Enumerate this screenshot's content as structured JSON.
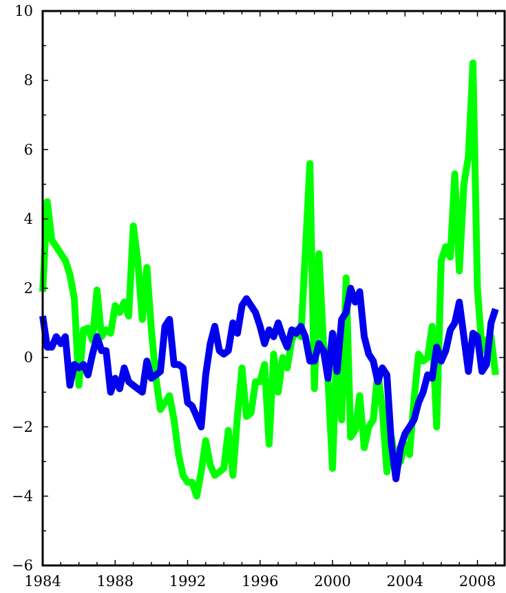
{
  "chart_data": {
    "type": "line",
    "title": "",
    "xlabel": "",
    "ylabel": "",
    "xlim": [
      1984,
      2009.5
    ],
    "ylim": [
      -6,
      10
    ],
    "x_ticks": [
      1984,
      1988,
      1992,
      1996,
      2000,
      2004,
      2008
    ],
    "x_tick_labels": [
      "1984",
      "1988",
      "1992",
      "1996",
      "2000",
      "2004",
      "2008"
    ],
    "y_ticks": [
      -6,
      -4,
      -2,
      0,
      2,
      4,
      6,
      8,
      10
    ],
    "y_tick_labels": [
      "−6",
      "−4",
      "−2",
      "0",
      "2",
      "4",
      "6",
      "8",
      "10"
    ],
    "grid": false,
    "legend": "none",
    "series": [
      {
        "color": "#00ff00",
        "points": [
          [
            1984.0,
            1.9
          ],
          [
            1984.25,
            4.5
          ],
          [
            1984.5,
            3.4
          ],
          [
            1984.75,
            3.2
          ],
          [
            1985.0,
            3.0
          ],
          [
            1985.25,
            2.8
          ],
          [
            1985.5,
            2.4
          ],
          [
            1985.75,
            1.7
          ],
          [
            1986.0,
            -0.8
          ],
          [
            1986.25,
            0.8
          ],
          [
            1986.5,
            0.85
          ],
          [
            1986.75,
            0.5
          ],
          [
            1987.0,
            1.95
          ],
          [
            1987.25,
            0.6
          ],
          [
            1987.5,
            0.8
          ],
          [
            1987.75,
            0.7
          ],
          [
            1988.0,
            1.5
          ],
          [
            1988.25,
            1.3
          ],
          [
            1988.5,
            1.6
          ],
          [
            1988.75,
            1.2
          ],
          [
            1989.0,
            3.8
          ],
          [
            1989.25,
            2.8
          ],
          [
            1989.5,
            1.1
          ],
          [
            1989.75,
            2.6
          ],
          [
            1990.0,
            0.8
          ],
          [
            1990.25,
            -0.6
          ],
          [
            1990.5,
            -1.5
          ],
          [
            1990.75,
            -1.3
          ],
          [
            1991.0,
            -1.1
          ],
          [
            1991.25,
            -1.8
          ],
          [
            1991.5,
            -2.8
          ],
          [
            1991.75,
            -3.4
          ],
          [
            1992.0,
            -3.6
          ],
          [
            1992.25,
            -3.6
          ],
          [
            1992.5,
            -4.0
          ],
          [
            1992.75,
            -3.3
          ],
          [
            1993.0,
            -2.4
          ],
          [
            1993.25,
            -3.1
          ],
          [
            1993.5,
            -3.4
          ],
          [
            1993.75,
            -3.3
          ],
          [
            1994.0,
            -3.2
          ],
          [
            1994.25,
            -2.1
          ],
          [
            1994.5,
            -3.4
          ],
          [
            1994.75,
            -1.7
          ],
          [
            1995.0,
            -0.3
          ],
          [
            1995.25,
            -1.7
          ],
          [
            1995.5,
            -1.6
          ],
          [
            1995.75,
            -0.7
          ],
          [
            1996.0,
            -0.7
          ],
          [
            1996.25,
            -0.2
          ],
          [
            1996.5,
            -2.5
          ],
          [
            1996.75,
            0.1
          ],
          [
            1997.0,
            -1.0
          ],
          [
            1997.25,
            0.0
          ],
          [
            1997.5,
            -0.3
          ],
          [
            1997.75,
            0.5
          ],
          [
            1998.0,
            0.8
          ],
          [
            1998.25,
            0.6
          ],
          [
            1998.5,
            3.0
          ],
          [
            1998.75,
            5.6
          ],
          [
            1999.0,
            -0.9
          ],
          [
            1999.25,
            3.0
          ],
          [
            1999.5,
            0.4
          ],
          [
            1999.75,
            -0.6
          ],
          [
            2000.0,
            -3.2
          ],
          [
            2000.25,
            0.6
          ],
          [
            2000.5,
            -1.8
          ],
          [
            2000.75,
            2.3
          ],
          [
            2001.0,
            -2.3
          ],
          [
            2001.25,
            -2.1
          ],
          [
            2001.5,
            -1.1
          ],
          [
            2001.75,
            -2.6
          ],
          [
            2002.0,
            -2.0
          ],
          [
            2002.25,
            -1.8
          ],
          [
            2002.5,
            -0.4
          ],
          [
            2002.75,
            -1.5
          ],
          [
            2003.0,
            -3.3
          ],
          [
            2003.25,
            -2.3
          ],
          [
            2003.5,
            -3.1
          ],
          [
            2003.75,
            -3.0
          ],
          [
            2004.0,
            -2.5
          ],
          [
            2004.25,
            -2.8
          ],
          [
            2004.5,
            -1.2
          ],
          [
            2004.75,
            0.1
          ],
          [
            2005.0,
            -0.1
          ],
          [
            2005.25,
            0.0
          ],
          [
            2005.5,
            0.9
          ],
          [
            2005.75,
            -2.0
          ],
          [
            2006.0,
            2.8
          ],
          [
            2006.25,
            3.2
          ],
          [
            2006.5,
            2.9
          ],
          [
            2006.75,
            5.3
          ],
          [
            2007.0,
            2.5
          ],
          [
            2007.25,
            5.0
          ],
          [
            2007.5,
            5.8
          ],
          [
            2007.75,
            8.5
          ],
          [
            2008.0,
            2.0
          ],
          [
            2008.25,
            0.2
          ],
          [
            2008.5,
            0.5
          ],
          [
            2008.75,
            0.6
          ],
          [
            2009.0,
            -0.5
          ]
        ]
      },
      {
        "color": "#0000ee",
        "points": [
          [
            1984.0,
            1.2
          ],
          [
            1984.25,
            0.3
          ],
          [
            1984.5,
            0.3
          ],
          [
            1984.75,
            0.6
          ],
          [
            1985.0,
            0.4
          ],
          [
            1985.25,
            0.6
          ],
          [
            1985.5,
            -0.8
          ],
          [
            1985.75,
            -0.2
          ],
          [
            1986.0,
            -0.3
          ],
          [
            1986.25,
            -0.2
          ],
          [
            1986.5,
            -0.5
          ],
          [
            1986.75,
            0.1
          ],
          [
            1987.0,
            0.6
          ],
          [
            1987.25,
            0.2
          ],
          [
            1987.5,
            0.2
          ],
          [
            1987.75,
            -1.0
          ],
          [
            1988.0,
            -0.6
          ],
          [
            1988.25,
            -0.9
          ],
          [
            1988.5,
            -0.3
          ],
          [
            1988.75,
            -0.7
          ],
          [
            1989.0,
            -0.8
          ],
          [
            1989.25,
            -0.9
          ],
          [
            1989.5,
            -1.0
          ],
          [
            1989.75,
            -0.1
          ],
          [
            1990.0,
            -0.6
          ],
          [
            1990.25,
            -0.5
          ],
          [
            1990.5,
            -0.4
          ],
          [
            1990.75,
            0.9
          ],
          [
            1991.0,
            1.1
          ],
          [
            1991.25,
            -0.2
          ],
          [
            1991.5,
            -0.2
          ],
          [
            1991.75,
            -0.3
          ],
          [
            1992.0,
            -1.3
          ],
          [
            1992.25,
            -1.4
          ],
          [
            1992.5,
            -1.7
          ],
          [
            1992.75,
            -2.0
          ],
          [
            1993.0,
            -0.5
          ],
          [
            1993.25,
            0.4
          ],
          [
            1993.5,
            0.9
          ],
          [
            1993.75,
            0.2
          ],
          [
            1994.0,
            0.1
          ],
          [
            1994.25,
            0.2
          ],
          [
            1994.5,
            1.0
          ],
          [
            1994.75,
            0.7
          ],
          [
            1995.0,
            1.5
          ],
          [
            1995.25,
            1.7
          ],
          [
            1995.5,
            1.5
          ],
          [
            1995.75,
            1.3
          ],
          [
            1996.0,
            0.9
          ],
          [
            1996.25,
            0.4
          ],
          [
            1996.5,
            0.8
          ],
          [
            1996.75,
            0.6
          ],
          [
            1997.0,
            1.0
          ],
          [
            1997.25,
            0.6
          ],
          [
            1997.5,
            0.3
          ],
          [
            1997.75,
            0.8
          ],
          [
            1998.0,
            0.7
          ],
          [
            1998.25,
            0.9
          ],
          [
            1998.5,
            0.6
          ],
          [
            1998.75,
            -0.1
          ],
          [
            1999.0,
            -0.1
          ],
          [
            1999.25,
            0.4
          ],
          [
            1999.5,
            0.2
          ],
          [
            1999.75,
            -0.6
          ],
          [
            2000.0,
            0.7
          ],
          [
            2000.25,
            -0.4
          ],
          [
            2000.5,
            1.1
          ],
          [
            2000.75,
            1.3
          ],
          [
            2001.0,
            2.0
          ],
          [
            2001.25,
            1.6
          ],
          [
            2001.5,
            1.9
          ],
          [
            2001.75,
            0.6
          ],
          [
            2002.0,
            0.1
          ],
          [
            2002.25,
            -0.1
          ],
          [
            2002.5,
            -0.7
          ],
          [
            2002.75,
            -0.3
          ],
          [
            2003.0,
            -0.5
          ],
          [
            2003.25,
            -2.5
          ],
          [
            2003.5,
            -3.5
          ],
          [
            2003.75,
            -2.6
          ],
          [
            2004.0,
            -2.2
          ],
          [
            2004.25,
            -2.0
          ],
          [
            2004.5,
            -1.8
          ],
          [
            2004.75,
            -1.3
          ],
          [
            2005.0,
            -1.0
          ],
          [
            2005.25,
            -0.5
          ],
          [
            2005.5,
            -0.6
          ],
          [
            2005.75,
            0.3
          ],
          [
            2006.0,
            -0.1
          ],
          [
            2006.25,
            0.2
          ],
          [
            2006.5,
            0.8
          ],
          [
            2006.75,
            1.0
          ],
          [
            2007.0,
            1.6
          ],
          [
            2007.25,
            0.6
          ],
          [
            2007.5,
            -0.4
          ],
          [
            2007.75,
            0.7
          ],
          [
            2008.0,
            0.6
          ],
          [
            2008.25,
            -0.4
          ],
          [
            2008.5,
            -0.2
          ],
          [
            2008.75,
            1.0
          ],
          [
            2009.0,
            1.4
          ]
        ]
      }
    ]
  }
}
